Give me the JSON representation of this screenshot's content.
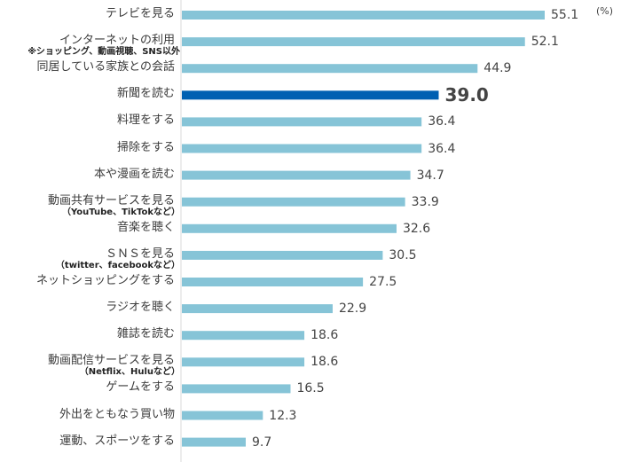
{
  "chart_data": {
    "type": "bar",
    "orientation": "horizontal",
    "unit_label": "(%)",
    "categories": [
      "テレビを見る",
      "インターネットの利用",
      "同居している家族との会話",
      "新聞を読む",
      "料理をする",
      "掃除をする",
      "本や漫画を読む",
      "動画共有サービスを見る",
      "音楽を聴く",
      "ＳＮＳを見る",
      "ネットショッピングをする",
      "ラジオを聴く",
      "雑誌を読む",
      "動画配信サービスを見る",
      "ゲームをする",
      "外出をともなう買い物",
      "運動、スポーツをする"
    ],
    "notes": [
      "",
      "※ショッピング、動画視聴、SNS以外",
      "",
      "",
      "",
      "",
      "",
      "（YouTube、TikTokなど）",
      "",
      "（twitter、facebookなど）",
      "",
      "",
      "",
      "（Netflix、Huluなど）",
      "",
      "",
      ""
    ],
    "values": [
      55.1,
      52.1,
      44.9,
      39.0,
      36.4,
      36.4,
      34.7,
      33.9,
      32.6,
      30.5,
      27.5,
      22.9,
      18.6,
      18.6,
      16.5,
      12.3,
      9.7
    ],
    "value_labels": [
      "55.1",
      "52.1",
      "44.9",
      "39.0",
      "36.4",
      "36.4",
      "34.7",
      "33.9",
      "32.6",
      "30.5",
      "27.5",
      "22.9",
      "18.6",
      "18.6",
      "16.5",
      "12.3",
      "9.7"
    ],
    "highlight_index": 3,
    "colors": {
      "bar": "#86c4d7",
      "highlight": "#0060b2",
      "axis": "#d9d9d9"
    },
    "xlim": [
      0,
      60
    ]
  }
}
